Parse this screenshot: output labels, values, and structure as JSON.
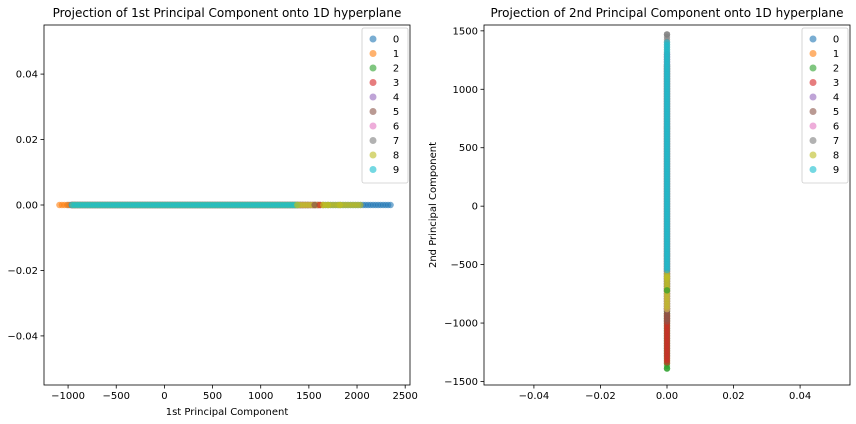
{
  "colors": [
    "#1f77b4",
    "#ff7f0e",
    "#2ca02c",
    "#d62728",
    "#9467bd",
    "#8c564b",
    "#e377c2",
    "#7f7f7f",
    "#bcbd22",
    "#17becf"
  ],
  "chart_data": [
    {
      "type": "scatter",
      "title": "Projection of 1st Principal Component onto 1D hyperplane",
      "xlabel": "1st Principal Component",
      "ylabel": "",
      "xlim": [
        -1250,
        2550
      ],
      "ylim": [
        -0.055,
        0.055
      ],
      "xticks": [
        -1000,
        -500,
        0,
        500,
        1000,
        1500,
        2000,
        2500
      ],
      "xtick_labels": [
        "−1000",
        "−500",
        "0",
        "500",
        "1000",
        "1500",
        "2000",
        "2500"
      ],
      "yticks": [
        0.04,
        0.02,
        0.0,
        -0.02,
        -0.04
      ],
      "ytick_labels": [
        "0.04",
        "0.02",
        "0.00",
        "−0.02",
        "−0.04"
      ],
      "legend": "top-right",
      "series": [
        {
          "name": "0",
          "range": [
            -1000,
            2360
          ]
        },
        {
          "name": "1",
          "range": [
            -1090,
            -930
          ]
        },
        {
          "name": "2",
          "range": [
            -950,
            1500
          ]
        },
        {
          "name": "3",
          "range": [
            -960,
            1600
          ]
        },
        {
          "name": "4",
          "range": [
            -960,
            1450
          ]
        },
        {
          "name": "5",
          "range": [
            -950,
            1600
          ]
        },
        {
          "name": "6",
          "range": [
            -950,
            1650
          ]
        },
        {
          "name": "7",
          "range": [
            -960,
            1400
          ]
        },
        {
          "name": "8",
          "range": [
            -950,
            2050
          ]
        },
        {
          "name": "9",
          "range": [
            -960,
            1400
          ]
        }
      ],
      "extra_points": [
        {
          "series": "8",
          "x": 1700
        },
        {
          "series": "8",
          "x": 1820
        },
        {
          "series": "8",
          "x": 1380
        },
        {
          "series": "3",
          "x": 1610
        },
        {
          "series": "5",
          "x": 1560
        },
        {
          "series": "8",
          "x": 1650
        }
      ]
    },
    {
      "type": "scatter",
      "title": "Projection of 2nd Principal Component onto 1D hyperplane",
      "xlabel": "",
      "ylabel": "2nd Principal Component",
      "xlim": [
        -0.055,
        0.055
      ],
      "ylim": [
        -1530,
        1550
      ],
      "xticks": [
        -0.04,
        -0.02,
        0.0,
        0.02,
        0.04
      ],
      "xtick_labels": [
        "−0.04",
        "−0.02",
        "0.00",
        "0.02",
        "0.04"
      ],
      "yticks": [
        1500,
        1000,
        500,
        0,
        -500,
        -1000,
        -1500
      ],
      "ytick_labels": [
        "1500",
        "1000",
        "500",
        "0",
        "−500",
        "−1000",
        "−1500"
      ],
      "legend": "top-right",
      "series": [
        {
          "name": "0",
          "range": [
            -1300,
            1200
          ]
        },
        {
          "name": "1",
          "range": [
            -1350,
            1200
          ]
        },
        {
          "name": "2",
          "range": [
            -1390,
            1200
          ]
        },
        {
          "name": "3",
          "range": [
            -1350,
            -930
          ]
        },
        {
          "name": "4",
          "range": [
            -900,
            1300
          ]
        },
        {
          "name": "5",
          "range": [
            -1000,
            -880
          ]
        },
        {
          "name": "6",
          "range": [
            -900,
            1300
          ]
        },
        {
          "name": "7",
          "range": [
            -700,
            1470
          ]
        },
        {
          "name": "8",
          "range": [
            -900,
            -580
          ]
        },
        {
          "name": "9",
          "range": [
            -560,
            1400
          ]
        }
      ],
      "extra_points": [
        {
          "series": "7",
          "y": 1470
        },
        {
          "series": "2",
          "y": -1390
        },
        {
          "series": "2",
          "y": -720
        },
        {
          "series": "8",
          "y": -610
        }
      ]
    }
  ]
}
